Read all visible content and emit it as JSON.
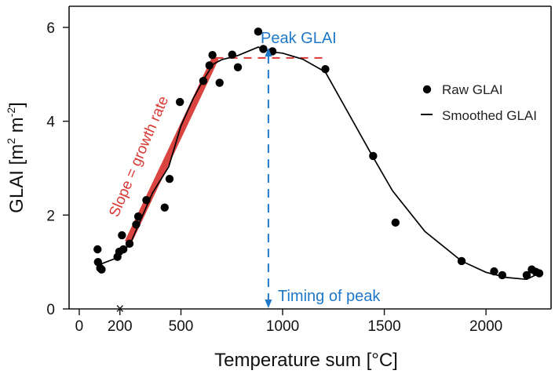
{
  "chart_data": {
    "type": "scatter",
    "title": "",
    "xlabel": "Temperature sum [°C]",
    "ylabel_parts": {
      "base": "GLAI [m",
      "sup1": "2",
      "middle": " m",
      "sup2": "-2",
      "end": "]"
    },
    "xlim": [
      -50,
      2320
    ],
    "ylim": [
      0,
      6.45
    ],
    "x_ticks": [
      0,
      200,
      500,
      1000,
      1500,
      2000
    ],
    "x_tick_labels": [
      "0",
      "200",
      "500",
      "1000",
      "1500",
      "2000"
    ],
    "y_ticks": [
      0,
      2,
      4,
      6
    ],
    "y_tick_labels": [
      "0",
      "2",
      "4",
      "6"
    ],
    "legend_position": "top-right",
    "legend": {
      "raw_label": "Raw GLAI",
      "smooth_label": "Smoothed GLAI"
    },
    "series": [
      {
        "name": "Raw GLAI",
        "type": "scatter",
        "color": "#000000",
        "points": [
          {
            "x": 90,
            "y": 1.27
          },
          {
            "x": 92,
            "y": 1.0
          },
          {
            "x": 103,
            "y": 0.87
          },
          {
            "x": 110,
            "y": 0.84
          },
          {
            "x": 188,
            "y": 1.11
          },
          {
            "x": 197,
            "y": 1.22
          },
          {
            "x": 210,
            "y": 1.57
          },
          {
            "x": 217,
            "y": 1.27
          },
          {
            "x": 247,
            "y": 1.39
          },
          {
            "x": 280,
            "y": 1.8
          },
          {
            "x": 290,
            "y": 1.97
          },
          {
            "x": 330,
            "y": 2.32
          },
          {
            "x": 420,
            "y": 2.16
          },
          {
            "x": 444,
            "y": 2.77
          },
          {
            "x": 495,
            "y": 4.41
          },
          {
            "x": 610,
            "y": 4.86
          },
          {
            "x": 640,
            "y": 5.19
          },
          {
            "x": 655,
            "y": 5.41
          },
          {
            "x": 690,
            "y": 4.82
          },
          {
            "x": 752,
            "y": 5.42
          },
          {
            "x": 780,
            "y": 5.15
          },
          {
            "x": 880,
            "y": 5.91
          },
          {
            "x": 905,
            "y": 5.54
          },
          {
            "x": 950,
            "y": 5.49
          },
          {
            "x": 1210,
            "y": 5.11
          },
          {
            "x": 1445,
            "y": 3.26
          },
          {
            "x": 1555,
            "y": 1.84
          },
          {
            "x": 1880,
            "y": 1.02
          },
          {
            "x": 2040,
            "y": 0.8
          },
          {
            "x": 2080,
            "y": 0.72
          },
          {
            "x": 2200,
            "y": 0.72
          },
          {
            "x": 2225,
            "y": 0.84
          },
          {
            "x": 2245,
            "y": 0.79
          },
          {
            "x": 2262,
            "y": 0.76
          }
        ]
      },
      {
        "name": "Smoothed GLAI",
        "type": "line",
        "color": "#000000",
        "points": [
          {
            "x": 90,
            "y": 0.93
          },
          {
            "x": 180,
            "y": 1.08
          },
          {
            "x": 250,
            "y": 1.38
          },
          {
            "x": 300,
            "y": 1.88
          },
          {
            "x": 360,
            "y": 2.47
          },
          {
            "x": 440,
            "y": 3.03
          },
          {
            "x": 500,
            "y": 3.9
          },
          {
            "x": 560,
            "y": 4.48
          },
          {
            "x": 610,
            "y": 4.88
          },
          {
            "x": 660,
            "y": 5.22
          },
          {
            "x": 700,
            "y": 5.31
          },
          {
            "x": 780,
            "y": 5.4
          },
          {
            "x": 880,
            "y": 5.58
          },
          {
            "x": 940,
            "y": 5.48
          },
          {
            "x": 1000,
            "y": 5.45
          },
          {
            "x": 1100,
            "y": 5.32
          },
          {
            "x": 1210,
            "y": 5.05
          },
          {
            "x": 1440,
            "y": 3.27
          },
          {
            "x": 1540,
            "y": 2.52
          },
          {
            "x": 1700,
            "y": 1.65
          },
          {
            "x": 1880,
            "y": 1.02
          },
          {
            "x": 2000,
            "y": 0.78
          },
          {
            "x": 2100,
            "y": 0.67
          },
          {
            "x": 2200,
            "y": 0.63
          },
          {
            "x": 2262,
            "y": 0.76
          }
        ]
      }
    ],
    "annotations": {
      "peak_label": "Peak GLAI",
      "timing_label": "Timing of peak",
      "slope_label": "Slope = growth rate",
      "x_marker_label": "×",
      "x_marker_x": 200,
      "timing_peak_x": 930,
      "peak_y": 5.58,
      "slope_line": {
        "start": {
          "x": 240,
          "y": 1.42
        },
        "end": {
          "x": 670,
          "y": 5.35
        }
      },
      "peak_level_line": {
        "start": {
          "x": 670,
          "y": 5.35
        },
        "end": {
          "x": 1200,
          "y": 5.35
        }
      }
    },
    "grid": false
  },
  "colors": {
    "black": "#000000",
    "red": "#d93a36",
    "blue": "#1f78c8",
    "axis": "#111111"
  }
}
